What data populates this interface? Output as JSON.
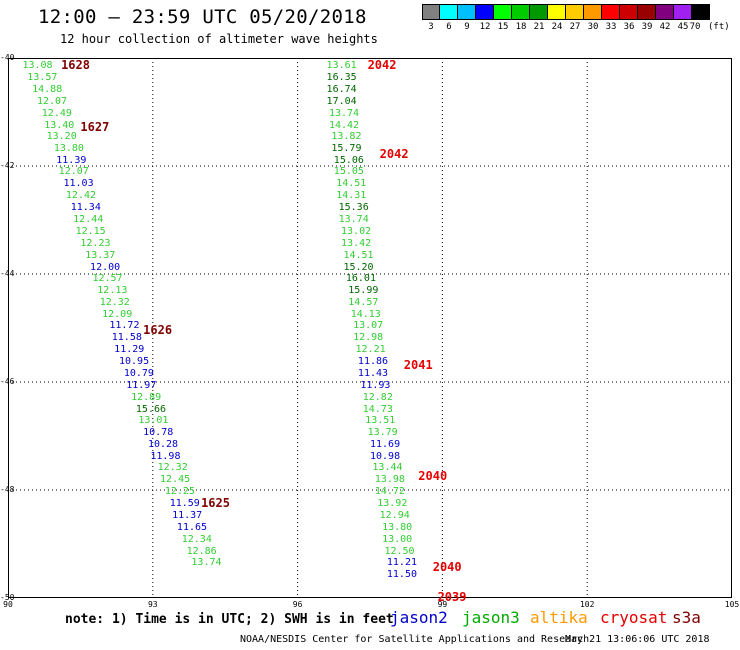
{
  "header": {
    "title": "12:00 — 23:59 UTC 05/20/2018",
    "subtitle": "12 hour collection of altimeter wave heights"
  },
  "legend": {
    "colors": [
      "#808080",
      "#00ffff",
      "#00bfff",
      "#0000ff",
      "#00ff00",
      "#00cc00",
      "#009900",
      "#ffff00",
      "#ffcc00",
      "#ff9900",
      "#ff0000",
      "#cc0000",
      "#990000",
      "#800080",
      "#a020f0",
      "#000000"
    ],
    "levels": [
      "3",
      "6",
      "9",
      "12",
      "15",
      "18",
      "21",
      "24",
      "27",
      "30",
      "33",
      "36",
      "39",
      "42",
      "45",
      "70"
    ],
    "unit": "(ft)"
  },
  "map": {
    "lon_range": [
      90,
      105
    ],
    "lat_range": [
      -40,
      -50
    ],
    "lon_ticks": [
      "90",
      "93",
      "96",
      "99",
      "102",
      "105"
    ],
    "lat_ticks": [
      "-40",
      "-42",
      "-44",
      "-46",
      "-48",
      "-50"
    ],
    "grid": true,
    "grid_style": "dotted"
  },
  "color_key": {
    "light_green": "#33cc33",
    "blue": "#0000cc",
    "dark_green": "#006600",
    "track_dark": "#800000",
    "track_red": "#e60000"
  },
  "tracks": [
    {
      "label": "1628",
      "color": "#800000",
      "lon": 91.1,
      "lat": -40.15
    },
    {
      "label": "1627",
      "color": "#800000",
      "lon": 91.5,
      "lat": -41.3
    },
    {
      "label": "1626",
      "color": "#800000",
      "lon": 92.8,
      "lat": -45.05
    },
    {
      "label": "1625",
      "color": "#800000",
      "lon": 94.0,
      "lat": -48.25
    },
    {
      "label": "2042",
      "color": "#e60000",
      "lon": 97.45,
      "lat": -40.15
    },
    {
      "label": "2042",
      "color": "#e60000",
      "lon": 97.7,
      "lat": -41.8
    },
    {
      "label": "2041",
      "color": "#e60000",
      "lon": 98.2,
      "lat": -45.7
    },
    {
      "label": "2040",
      "color": "#e60000",
      "lon": 98.5,
      "lat": -47.75
    },
    {
      "label": "2040",
      "color": "#e60000",
      "lon": 98.8,
      "lat": -49.45
    },
    {
      "label": "2039",
      "color": "#e60000",
      "lon": 98.9,
      "lat": -50.0
    }
  ],
  "wave_heights": [
    {
      "v": "13.08",
      "lon": 90.3,
      "lat": -40.15,
      "c": "#33cc33"
    },
    {
      "v": "13.57",
      "lon": 90.4,
      "lat": -40.37,
      "c": "#33cc33"
    },
    {
      "v": "14.88",
      "lon": 90.5,
      "lat": -40.59,
      "c": "#33cc33"
    },
    {
      "v": "12.07",
      "lon": 90.6,
      "lat": -40.81,
      "c": "#33cc33"
    },
    {
      "v": "12.49",
      "lon": 90.7,
      "lat": -41.03,
      "c": "#33cc33"
    },
    {
      "v": "13.40",
      "lon": 90.75,
      "lat": -41.25,
      "c": "#33cc33"
    },
    {
      "v": "13.20",
      "lon": 90.8,
      "lat": -41.46,
      "c": "#33cc33"
    },
    {
      "v": "13.80",
      "lon": 90.95,
      "lat": -41.68,
      "c": "#33cc33"
    },
    {
      "v": "11.39",
      "lon": 91.0,
      "lat": -41.9,
      "c": "#0000cc"
    },
    {
      "v": "12.07",
      "lon": 91.05,
      "lat": -42.12,
      "c": "#33cc33"
    },
    {
      "v": "11.03",
      "lon": 91.15,
      "lat": -42.34,
      "c": "#0000cc"
    },
    {
      "v": "12.42",
      "lon": 91.2,
      "lat": -42.56,
      "c": "#33cc33"
    },
    {
      "v": "11.34",
      "lon": 91.3,
      "lat": -42.78,
      "c": "#0000cc"
    },
    {
      "v": "12.44",
      "lon": 91.35,
      "lat": -43.0,
      "c": "#33cc33"
    },
    {
      "v": "12.15",
      "lon": 91.4,
      "lat": -43.22,
      "c": "#33cc33"
    },
    {
      "v": "12.23",
      "lon": 91.5,
      "lat": -43.44,
      "c": "#33cc33"
    },
    {
      "v": "13.37",
      "lon": 91.6,
      "lat": -43.66,
      "c": "#33cc33"
    },
    {
      "v": "12.00",
      "lon": 91.7,
      "lat": -43.88,
      "c": "#0000cc"
    },
    {
      "v": "12.57",
      "lon": 91.75,
      "lat": -44.1,
      "c": "#33cc33"
    },
    {
      "v": "12.13",
      "lon": 91.85,
      "lat": -44.31,
      "c": "#33cc33"
    },
    {
      "v": "12.32",
      "lon": 91.9,
      "lat": -44.53,
      "c": "#33cc33"
    },
    {
      "v": "12.09",
      "lon": 91.95,
      "lat": -44.75,
      "c": "#33cc33"
    },
    {
      "v": "11.72",
      "lon": 92.1,
      "lat": -44.97,
      "c": "#0000cc"
    },
    {
      "v": "11.58",
      "lon": 92.15,
      "lat": -45.19,
      "c": "#0000cc"
    },
    {
      "v": "11.29",
      "lon": 92.2,
      "lat": -45.41,
      "c": "#0000cc"
    },
    {
      "v": "10.95",
      "lon": 92.3,
      "lat": -45.63,
      "c": "#0000cc"
    },
    {
      "v": "10.79",
      "lon": 92.4,
      "lat": -45.85,
      "c": "#0000cc"
    },
    {
      "v": "11.97",
      "lon": 92.45,
      "lat": -46.07,
      "c": "#0000cc"
    },
    {
      "v": "12.89",
      "lon": 92.55,
      "lat": -46.29,
      "c": "#33cc33"
    },
    {
      "v": "15.66",
      "lon": 92.65,
      "lat": -46.51,
      "c": "#006600"
    },
    {
      "v": "13.01",
      "lon": 92.7,
      "lat": -46.73,
      "c": "#33cc33"
    },
    {
      "v": "10.78",
      "lon": 92.8,
      "lat": -46.95,
      "c": "#0000cc"
    },
    {
      "v": "10.28",
      "lon": 92.9,
      "lat": -47.16,
      "c": "#0000cc"
    },
    {
      "v": "11.98",
      "lon": 92.95,
      "lat": -47.38,
      "c": "#0000cc"
    },
    {
      "v": "12.32",
      "lon": 93.1,
      "lat": -47.6,
      "c": "#33cc33"
    },
    {
      "v": "12.45",
      "lon": 93.15,
      "lat": -47.82,
      "c": "#33cc33"
    },
    {
      "v": "12.25",
      "lon": 93.25,
      "lat": -48.04,
      "c": "#33cc33"
    },
    {
      "v": "11.59",
      "lon": 93.35,
      "lat": -48.26,
      "c": "#0000cc"
    },
    {
      "v": "11.37",
      "lon": 93.4,
      "lat": -48.48,
      "c": "#0000cc"
    },
    {
      "v": "11.65",
      "lon": 93.5,
      "lat": -48.7,
      "c": "#0000cc"
    },
    {
      "v": "12.34",
      "lon": 93.6,
      "lat": -48.92,
      "c": "#33cc33"
    },
    {
      "v": "12.86",
      "lon": 93.7,
      "lat": -49.14,
      "c": "#33cc33"
    },
    {
      "v": "13.74",
      "lon": 93.8,
      "lat": -49.36,
      "c": "#33cc33"
    },
    {
      "v": "13.61",
      "lon": 96.6,
      "lat": -40.15,
      "c": "#33cc33"
    },
    {
      "v": "16.35",
      "lon": 96.6,
      "lat": -40.37,
      "c": "#006600"
    },
    {
      "v": "16.74",
      "lon": 96.6,
      "lat": -40.59,
      "c": "#006600"
    },
    {
      "v": "17.04",
      "lon": 96.6,
      "lat": -40.81,
      "c": "#006600"
    },
    {
      "v": "13.74",
      "lon": 96.65,
      "lat": -41.03,
      "c": "#33cc33"
    },
    {
      "v": "14.42",
      "lon": 96.65,
      "lat": -41.25,
      "c": "#33cc33"
    },
    {
      "v": "13.82",
      "lon": 96.7,
      "lat": -41.46,
      "c": "#33cc33"
    },
    {
      "v": "15.79",
      "lon": 96.7,
      "lat": -41.68,
      "c": "#006600"
    },
    {
      "v": "15.06",
      "lon": 96.75,
      "lat": -41.9,
      "c": "#006600"
    },
    {
      "v": "15.05",
      "lon": 96.75,
      "lat": -42.12,
      "c": "#33cc33"
    },
    {
      "v": "14.51",
      "lon": 96.8,
      "lat": -42.34,
      "c": "#33cc33"
    },
    {
      "v": "14.31",
      "lon": 96.8,
      "lat": -42.56,
      "c": "#33cc33"
    },
    {
      "v": "15.36",
      "lon": 96.85,
      "lat": -42.78,
      "c": "#006600"
    },
    {
      "v": "13.74",
      "lon": 96.85,
      "lat": -43.0,
      "c": "#33cc33"
    },
    {
      "v": "13.02",
      "lon": 96.9,
      "lat": -43.22,
      "c": "#33cc33"
    },
    {
      "v": "13.42",
      "lon": 96.9,
      "lat": -43.44,
      "c": "#33cc33"
    },
    {
      "v": "14.51",
      "lon": 96.95,
      "lat": -43.66,
      "c": "#33cc33"
    },
    {
      "v": "15.20",
      "lon": 96.95,
      "lat": -43.88,
      "c": "#006600"
    },
    {
      "v": "16.01",
      "lon": 97.0,
      "lat": -44.1,
      "c": "#006600"
    },
    {
      "v": "15.99",
      "lon": 97.05,
      "lat": -44.31,
      "c": "#006600"
    },
    {
      "v": "14.57",
      "lon": 97.05,
      "lat": -44.53,
      "c": "#33cc33"
    },
    {
      "v": "14.13",
      "lon": 97.1,
      "lat": -44.75,
      "c": "#33cc33"
    },
    {
      "v": "13.07",
      "lon": 97.15,
      "lat": -44.97,
      "c": "#33cc33"
    },
    {
      "v": "12.98",
      "lon": 97.15,
      "lat": -45.19,
      "c": "#33cc33"
    },
    {
      "v": "12.21",
      "lon": 97.2,
      "lat": -45.41,
      "c": "#33cc33"
    },
    {
      "v": "11.86",
      "lon": 97.25,
      "lat": -45.63,
      "c": "#0000cc"
    },
    {
      "v": "11.43",
      "lon": 97.25,
      "lat": -45.85,
      "c": "#0000cc"
    },
    {
      "v": "11.93",
      "lon": 97.3,
      "lat": -46.07,
      "c": "#0000cc"
    },
    {
      "v": "12.82",
      "lon": 97.35,
      "lat": -46.29,
      "c": "#33cc33"
    },
    {
      "v": "14.73",
      "lon": 97.35,
      "lat": -46.51,
      "c": "#33cc33"
    },
    {
      "v": "13.51",
      "lon": 97.4,
      "lat": -46.73,
      "c": "#33cc33"
    },
    {
      "v": "13.79",
      "lon": 97.45,
      "lat": -46.95,
      "c": "#33cc33"
    },
    {
      "v": "11.69",
      "lon": 97.5,
      "lat": -47.16,
      "c": "#0000cc"
    },
    {
      "v": "10.98",
      "lon": 97.5,
      "lat": -47.38,
      "c": "#0000cc"
    },
    {
      "v": "13.44",
      "lon": 97.55,
      "lat": -47.6,
      "c": "#33cc33"
    },
    {
      "v": "13.98",
      "lon": 97.6,
      "lat": -47.82,
      "c": "#33cc33"
    },
    {
      "v": "14.72",
      "lon": 97.6,
      "lat": -48.04,
      "c": "#33cc33"
    },
    {
      "v": "13.92",
      "lon": 97.65,
      "lat": -48.26,
      "c": "#33cc33"
    },
    {
      "v": "12.94",
      "lon": 97.7,
      "lat": -48.48,
      "c": "#33cc33"
    },
    {
      "v": "13.80",
      "lon": 97.75,
      "lat": -48.7,
      "c": "#33cc33"
    },
    {
      "v": "13.00",
      "lon": 97.75,
      "lat": -48.92,
      "c": "#33cc33"
    },
    {
      "v": "12.50",
      "lon": 97.8,
      "lat": -49.14,
      "c": "#33cc33"
    },
    {
      "v": "11.21",
      "lon": 97.85,
      "lat": -49.36,
      "c": "#0000cc"
    },
    {
      "v": "11.50",
      "lon": 97.85,
      "lat": -49.58,
      "c": "#0000cc"
    }
  ],
  "note": "note: 1) Time is in UTC; 2) SWH is in feet",
  "satellites": [
    {
      "name": "jason2",
      "color": "#0000cc"
    },
    {
      "name": "jason3",
      "color": "#00aa00"
    },
    {
      "name": "altika",
      "color": "#ff9900"
    },
    {
      "name": "cryosat",
      "color": "#e60000"
    },
    {
      "name": "s3a",
      "color": "#800000"
    }
  ],
  "footer": {
    "credit": "NOAA/NESDIS Center for Satellite Applications and Research",
    "timestamp": "May 21 13:06:06 UTC 2018"
  }
}
